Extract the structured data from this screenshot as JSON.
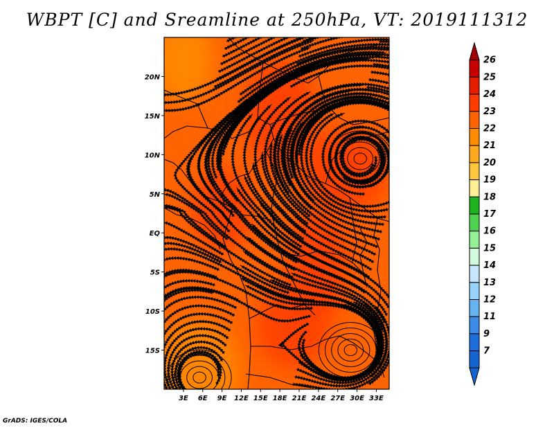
{
  "title": "WBPT [C] and Sreamline at 250hPa, VT: 2019111312",
  "credit": "GrADS: IGES/COLA",
  "map": {
    "lon_range": [
      0,
      35
    ],
    "lat_range": [
      -20,
      25
    ],
    "lat_ticks": [
      {
        "value": 20,
        "label": "20N"
      },
      {
        "value": 15,
        "label": "15N"
      },
      {
        "value": 10,
        "label": "10N"
      },
      {
        "value": 5,
        "label": "5N"
      },
      {
        "value": 0,
        "label": "EQ"
      },
      {
        "value": -5,
        "label": "5S"
      },
      {
        "value": -10,
        "label": "10S"
      },
      {
        "value": -15,
        "label": "15S"
      }
    ],
    "lon_ticks": [
      {
        "value": 3,
        "label": "3E"
      },
      {
        "value": 6,
        "label": "6E"
      },
      {
        "value": 9,
        "label": "9E"
      },
      {
        "value": 12,
        "label": "12E"
      },
      {
        "value": 15,
        "label": "15E"
      },
      {
        "value": 18,
        "label": "18E"
      },
      {
        "value": 21,
        "label": "21E"
      },
      {
        "value": 24,
        "label": "24E"
      },
      {
        "value": 27,
        "label": "27E"
      },
      {
        "value": 30,
        "label": "30E"
      },
      {
        "value": 33,
        "label": "33E"
      }
    ],
    "vortices": [
      {
        "name": "north-anticyclone",
        "lon": 30.5,
        "lat": 9.5,
        "rotation": "clockwise"
      },
      {
        "name": "south-anticyclone",
        "lon": 29.0,
        "lat": -15.0,
        "rotation": "counterclockwise"
      },
      {
        "name": "southwest-eddy",
        "lon": 5.5,
        "lat": -18.5,
        "rotation": "counterclockwise"
      }
    ],
    "field_patches": [
      {
        "lon": 3,
        "lat": 22,
        "wbpt": 21.5
      },
      {
        "lon": 18,
        "lat": 15,
        "wbpt": 23.2
      },
      {
        "lon": 28,
        "lat": 8,
        "wbpt": 23.4
      },
      {
        "lon": 24,
        "lat": -4,
        "wbpt": 23.6
      },
      {
        "lon": 20,
        "lat": -12,
        "wbpt": 23.4
      },
      {
        "lon": 5,
        "lat": -18,
        "wbpt": 21.4
      },
      {
        "lon": 9,
        "lat": 3,
        "wbpt": 23.1
      }
    ]
  },
  "colorbar": {
    "levels": [
      "26",
      "25",
      "24",
      "23",
      "22",
      "21",
      "20",
      "19",
      "18",
      "17",
      "16",
      "15",
      "14",
      "13",
      "12",
      "11",
      "9",
      "7"
    ],
    "colors": [
      "#a00000",
      "#c80000",
      "#e61e00",
      "#ff3c00",
      "#ff6400",
      "#ff8c00",
      "#ffaa1e",
      "#ffc83c",
      "#fff096",
      "#1eb41e",
      "#50d250",
      "#96f096",
      "#d2fadc",
      "#c8e6ff",
      "#96d2fa",
      "#64b4f0",
      "#3c8ce6",
      "#1e6edc",
      "#1464d2"
    ]
  }
}
